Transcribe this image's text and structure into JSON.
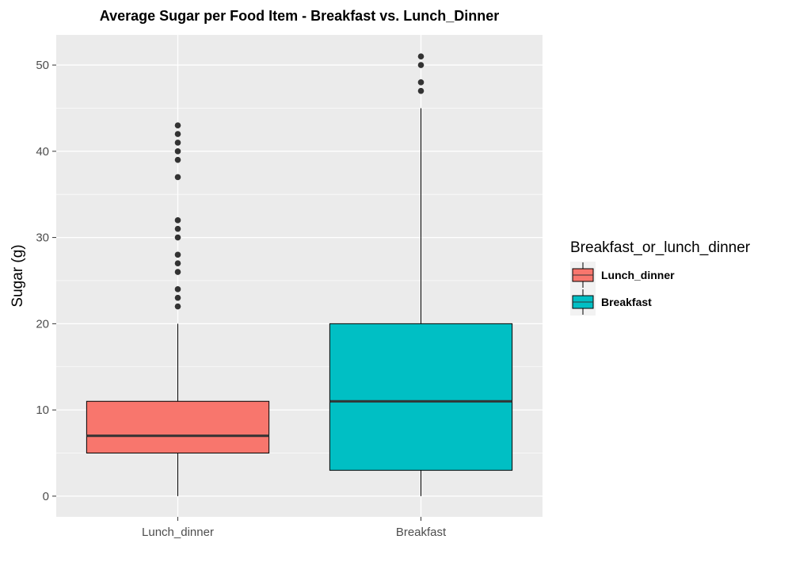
{
  "chart_data": {
    "type": "boxplot",
    "title": "Average Sugar per Food Item - Breakfast vs. Lunch_Dinner",
    "xlabel": "",
    "ylabel": "Sugar (g)",
    "ylim": [
      -2.4,
      53.5
    ],
    "y_ticks": [
      0,
      10,
      20,
      30,
      40,
      50
    ],
    "grid": true,
    "legend": {
      "title": "Breakfast_or_lunch_dinner",
      "position": "right"
    },
    "categories": [
      "Lunch_dinner",
      "Breakfast"
    ],
    "series": [
      {
        "name": "Lunch_dinner",
        "color": "#F8766D",
        "min": 0,
        "q1": 5,
        "median": 7,
        "q3": 11,
        "max": 20,
        "outliers": [
          22,
          23,
          24,
          26,
          27,
          28,
          30,
          31,
          32,
          37,
          39,
          40,
          41,
          42,
          43
        ]
      },
      {
        "name": "Breakfast",
        "color": "#00BFC4",
        "min": 0,
        "q1": 3,
        "median": 11,
        "q3": 20,
        "max": 45,
        "outliers": [
          47,
          48,
          50,
          51
        ]
      }
    ]
  }
}
